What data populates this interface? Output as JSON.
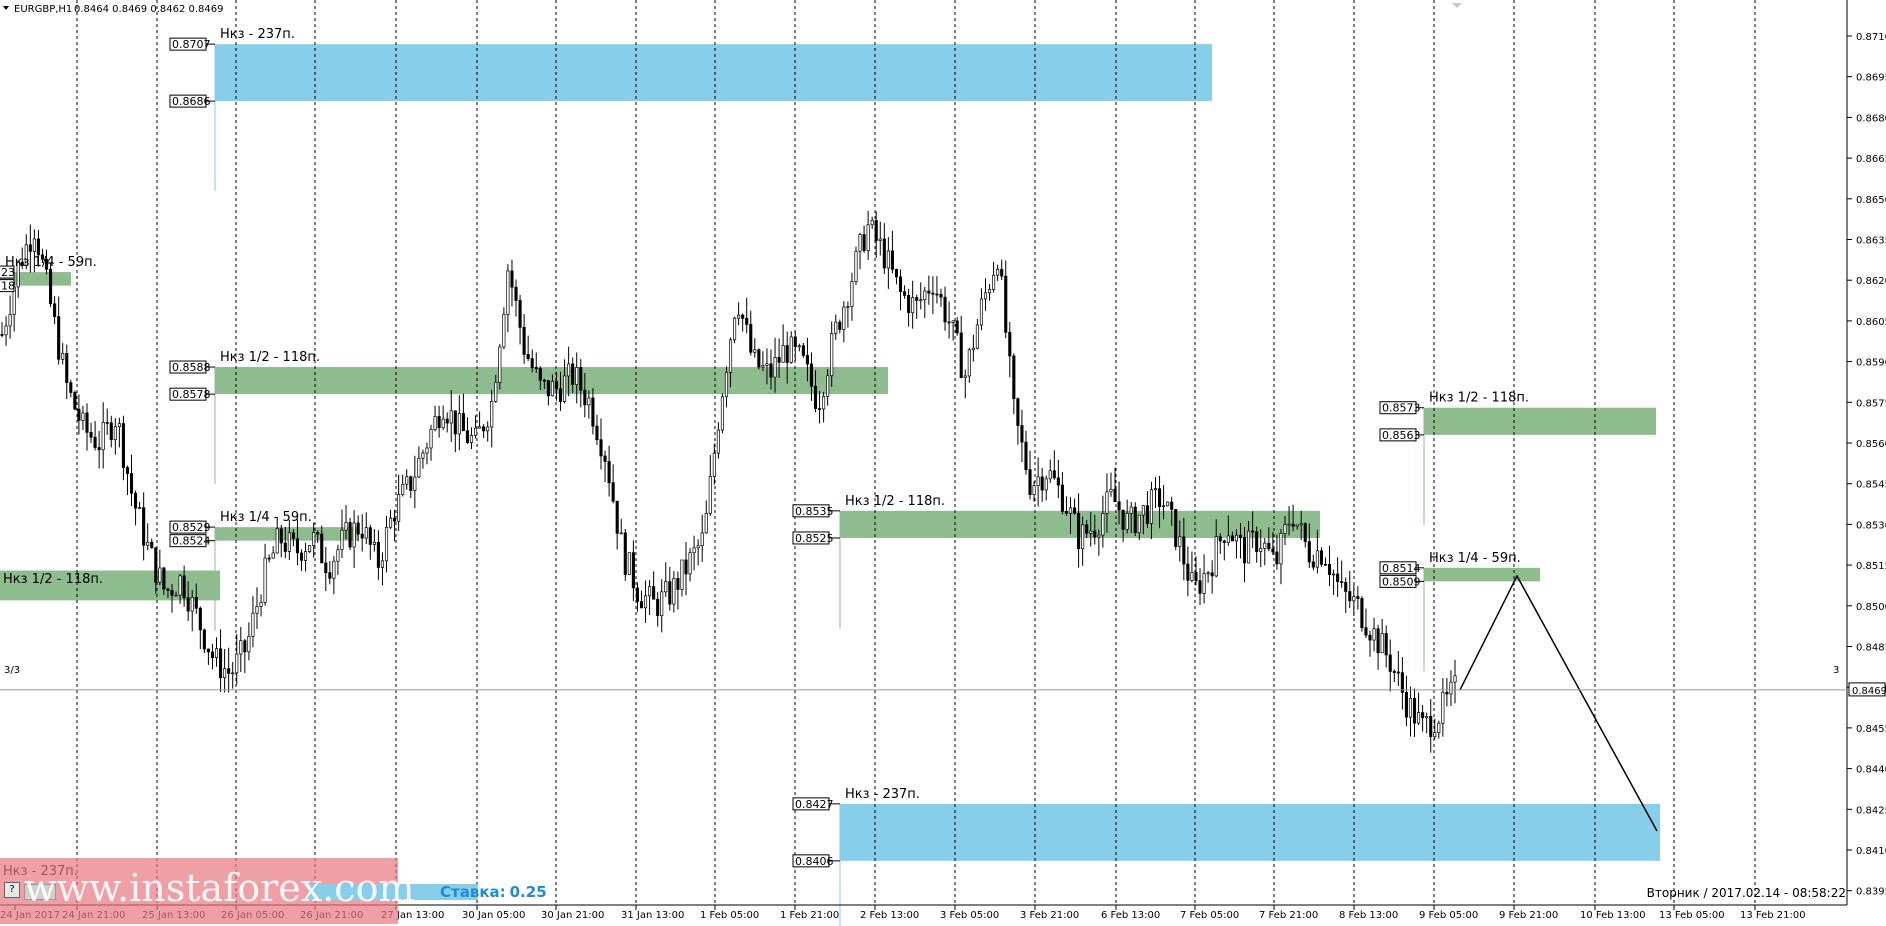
{
  "header": {
    "symbol": "EURGBP,H1",
    "ohlc": "0.8464 0.8469 0.8462 0.8469"
  },
  "current_price": "0.8469",
  "window_markers": {
    "left": "3/3",
    "right": "3"
  },
  "zones": [
    {
      "label": "Нкз - 237п.",
      "top_price": "0.8707",
      "bottom_price": "0.8686",
      "kind": "blue"
    },
    {
      "label": "Нкз 1/2 - 118п.",
      "top_price": "0.8588",
      "bottom_price": "0.8578",
      "kind": "green"
    },
    {
      "label": "Нкз 1/4 - 59п.",
      "top_price": "0.8529",
      "bottom_price": "0.8524",
      "kind": "green"
    },
    {
      "label": "Нкз 1/4 - 59п.",
      "top_price": "0.8623",
      "bottom_price": "0.8618",
      "kind": "green",
      "tag_top": "23",
      "tag_bottom": "18"
    },
    {
      "label": "Нкз 1/2 - 118п.",
      "kind": "green"
    },
    {
      "label": "Нкз 1/2 - 118п.",
      "top_price": "0.8535",
      "bottom_price": "0.8525",
      "kind": "green"
    },
    {
      "label": "Нкз - 237п.",
      "top_price": "0.8427",
      "bottom_price": "0.8406",
      "kind": "blue"
    },
    {
      "label": "Нкз 1/2 - 118п.",
      "top_price": "0.8573",
      "bottom_price": "0.8563",
      "kind": "green"
    },
    {
      "label": "Нкз 1/4 - 59п.",
      "top_price": "0.8514",
      "bottom_price": "0.8509",
      "kind": "green"
    },
    {
      "label": "Нкз - 237п.",
      "kind": "blue"
    }
  ],
  "watermark": {
    "text": "www.instaforex.com",
    "help": "?",
    "rate_label": "Ставка:",
    "rate_value": "0.25"
  },
  "footer": {
    "day": "Вторник",
    "date": "2017.02.14",
    "time": "08:58:22"
  },
  "colors": {
    "zone_blue": "#87ceeb",
    "zone_green": "#8fbc8f",
    "candle": "#000000",
    "grid": "#000000"
  },
  "chart_data": {
    "type": "candlestick",
    "symbol": "EURGBP",
    "timeframe": "H1",
    "ylim": [
      0.839,
      0.872
    ],
    "y_ticks": [
      "0.8710",
      "0.8695",
      "0.8680",
      "0.8665",
      "0.8650",
      "0.8635",
      "0.8620",
      "0.8605",
      "0.8590",
      "0.8575",
      "0.8560",
      "0.8545",
      "0.8530",
      "0.8515",
      "0.8500",
      "0.8485",
      "0.8470",
      "0.8455",
      "0.8440",
      "0.8425",
      "0.8410",
      "0.8395"
    ],
    "x_ticks": [
      "24 Jan 2017",
      "24 Jan 21:00",
      "25 Jan 13:00",
      "26 Jan 05:00",
      "26 Jan 21:00",
      "27 Jan 13:00",
      "30 Jan 05:00",
      "30 Jan 21:00",
      "31 Jan 13:00",
      "1 Feb 05:00",
      "1 Feb 21:00",
      "2 Feb 13:00",
      "3 Feb 05:00",
      "3 Feb 21:00",
      "6 Feb 13:00",
      "7 Feb 05:00",
      "7 Feb 21:00",
      "8 Feb 13:00",
      "9 Feb 05:00",
      "9 Feb 21:00",
      "10 Feb 13:00",
      "13 Feb 05:00",
      "13 Feb 21:00"
    ],
    "close_path": [
      0.86,
      0.8625,
      0.864,
      0.861,
      0.858,
      0.8565,
      0.856,
      0.857,
      0.854,
      0.852,
      0.8505,
      0.851,
      0.8495,
      0.848,
      0.8475,
      0.8485,
      0.851,
      0.8525,
      0.852,
      0.8525,
      0.8515,
      0.8525,
      0.853,
      0.8515,
      0.8535,
      0.8545,
      0.856,
      0.8575,
      0.8565,
      0.856,
      0.8575,
      0.8625,
      0.8595,
      0.858,
      0.858,
      0.8585,
      0.8575,
      0.8555,
      0.852,
      0.8505,
      0.85,
      0.8505,
      0.8515,
      0.8525,
      0.8575,
      0.8615,
      0.859,
      0.8585,
      0.8595,
      0.859,
      0.8575,
      0.86,
      0.862,
      0.864,
      0.863,
      0.8615,
      0.861,
      0.862,
      0.8605,
      0.8585,
      0.861,
      0.863,
      0.857,
      0.8545,
      0.855,
      0.854,
      0.8525,
      0.853,
      0.854,
      0.853,
      0.8535,
      0.854,
      0.8525,
      0.8505,
      0.8515,
      0.853,
      0.852,
      0.8525,
      0.8515,
      0.8535,
      0.852,
      0.852,
      0.8505,
      0.85,
      0.849,
      0.848,
      0.8465,
      0.8455,
      0.846,
      0.8469
    ],
    "forecast_path": [
      0.8469,
      0.8511,
      0.8417
    ]
  }
}
